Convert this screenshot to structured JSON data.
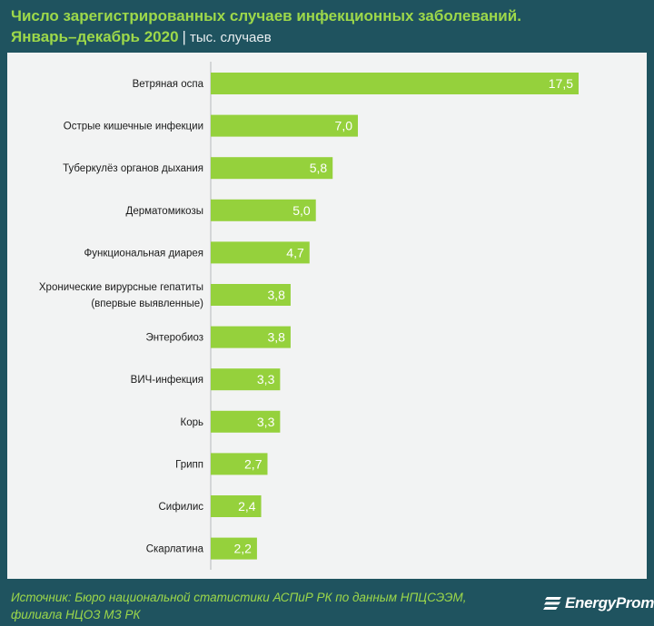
{
  "header": {
    "title_line1": "Число зарегистрированных случаев инфекционных заболеваний.",
    "title_line2": "Январь–декабрь 2020",
    "separator": "|",
    "unit": "тыс. случаев"
  },
  "footer": {
    "source_line1": "Источник: Бюро национальной статистики АСПиР РК по данным НПЦСЭЭМ,",
    "source_line2": "филиала НЦОЗ МЗ РК",
    "logo_text": "EnergyProm"
  },
  "colors": {
    "bar": "#95d13c",
    "background": "#1f535f",
    "panel": "#f2f3f3",
    "accent_text": "#9dd84a"
  },
  "chart_data": {
    "type": "bar",
    "orientation": "horizontal",
    "categories": [
      [
        "Ветряная оспа"
      ],
      [
        "Острые кишечные инфекции"
      ],
      [
        "Туберкулёз органов дыхания"
      ],
      [
        "Дерматомикозы"
      ],
      [
        "Функциональная диарея"
      ],
      [
        "Хронические вирурсные гепатиты",
        "(впервые выявленные)"
      ],
      [
        "Энтеробиоз"
      ],
      [
        "ВИЧ-инфекция"
      ],
      [
        "Корь"
      ],
      [
        "Грипп"
      ],
      [
        "Сифилис"
      ],
      [
        "Скарлатина"
      ]
    ],
    "values": [
      17.5,
      7.0,
      5.8,
      5.0,
      4.7,
      3.8,
      3.8,
      3.3,
      3.3,
      2.7,
      2.4,
      2.2
    ],
    "value_labels": [
      "17,5",
      "7,0",
      "5,8",
      "5,0",
      "4,7",
      "3,8",
      "3,8",
      "3,3",
      "3,3",
      "2,7",
      "2,4",
      "2,2"
    ],
    "xlim": [
      0,
      17.5
    ],
    "grid": false,
    "legend": false
  }
}
